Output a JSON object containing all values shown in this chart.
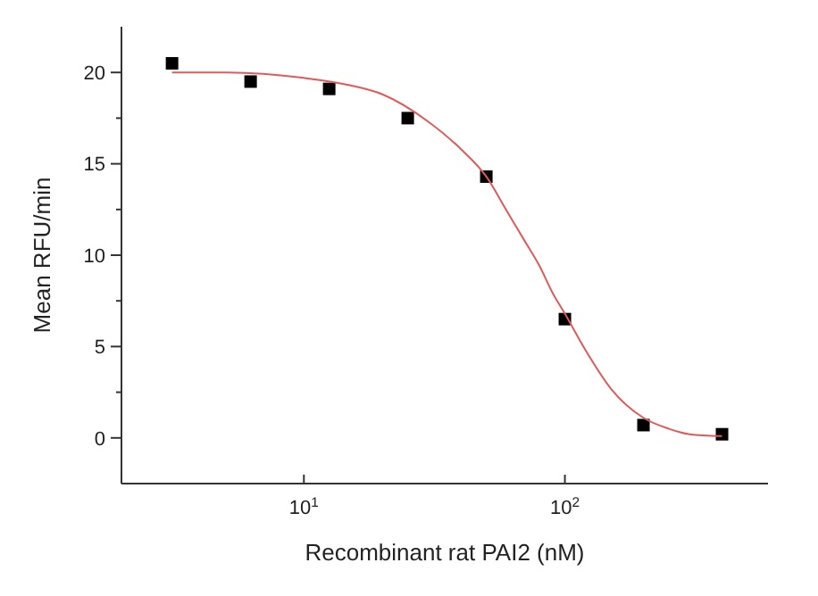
{
  "chart_data": {
    "type": "scatter",
    "xlabel": "Recombinant rat PAI2 (nM)",
    "ylabel": "Mean RFU/min",
    "log": "x",
    "xlim": [
      2,
      600
    ],
    "xticks": [
      {
        "value": 10,
        "label": "10$^{1}$"
      },
      {
        "value": 100,
        "label": "10$^{2}$"
      }
    ],
    "ylim": [
      -2.5,
      22.5
    ],
    "yticks": [
      0,
      {
        "value": 2.5,
        "label": null
      },
      5,
      {
        "value": 7.5,
        "label": null
      },
      10,
      {
        "value": 12.5,
        "label": null
      },
      15,
      {
        "value": 17.5,
        "label": null
      },
      20
    ],
    "grid": false,
    "x": [
      3.125,
      6.25,
      12.5,
      25,
      50,
      100,
      200,
      400
    ],
    "series": [
      {
        "color": "#000000",
        "marker": "square",
        "values": [
          20.5,
          19.5,
          19.1,
          17.5,
          14.3,
          6.5,
          0.7,
          0.2
        ]
      },
      {
        "type": "line",
        "color": "#e05a5a",
        "marker": "none",
        "x": [
          3.125,
          5,
          10,
          15,
          20,
          30,
          40,
          50,
          60,
          70,
          80,
          90,
          100,
          120,
          150,
          200,
          250,
          300,
          400
        ],
        "values": [
          20.0,
          20.0,
          19.7,
          19.3,
          18.8,
          17.3,
          15.8,
          14.3,
          12.4,
          10.8,
          9.4,
          7.9,
          6.8,
          4.8,
          2.7,
          1.1,
          0.5,
          0.2,
          0.1
        ]
      }
    ]
  }
}
